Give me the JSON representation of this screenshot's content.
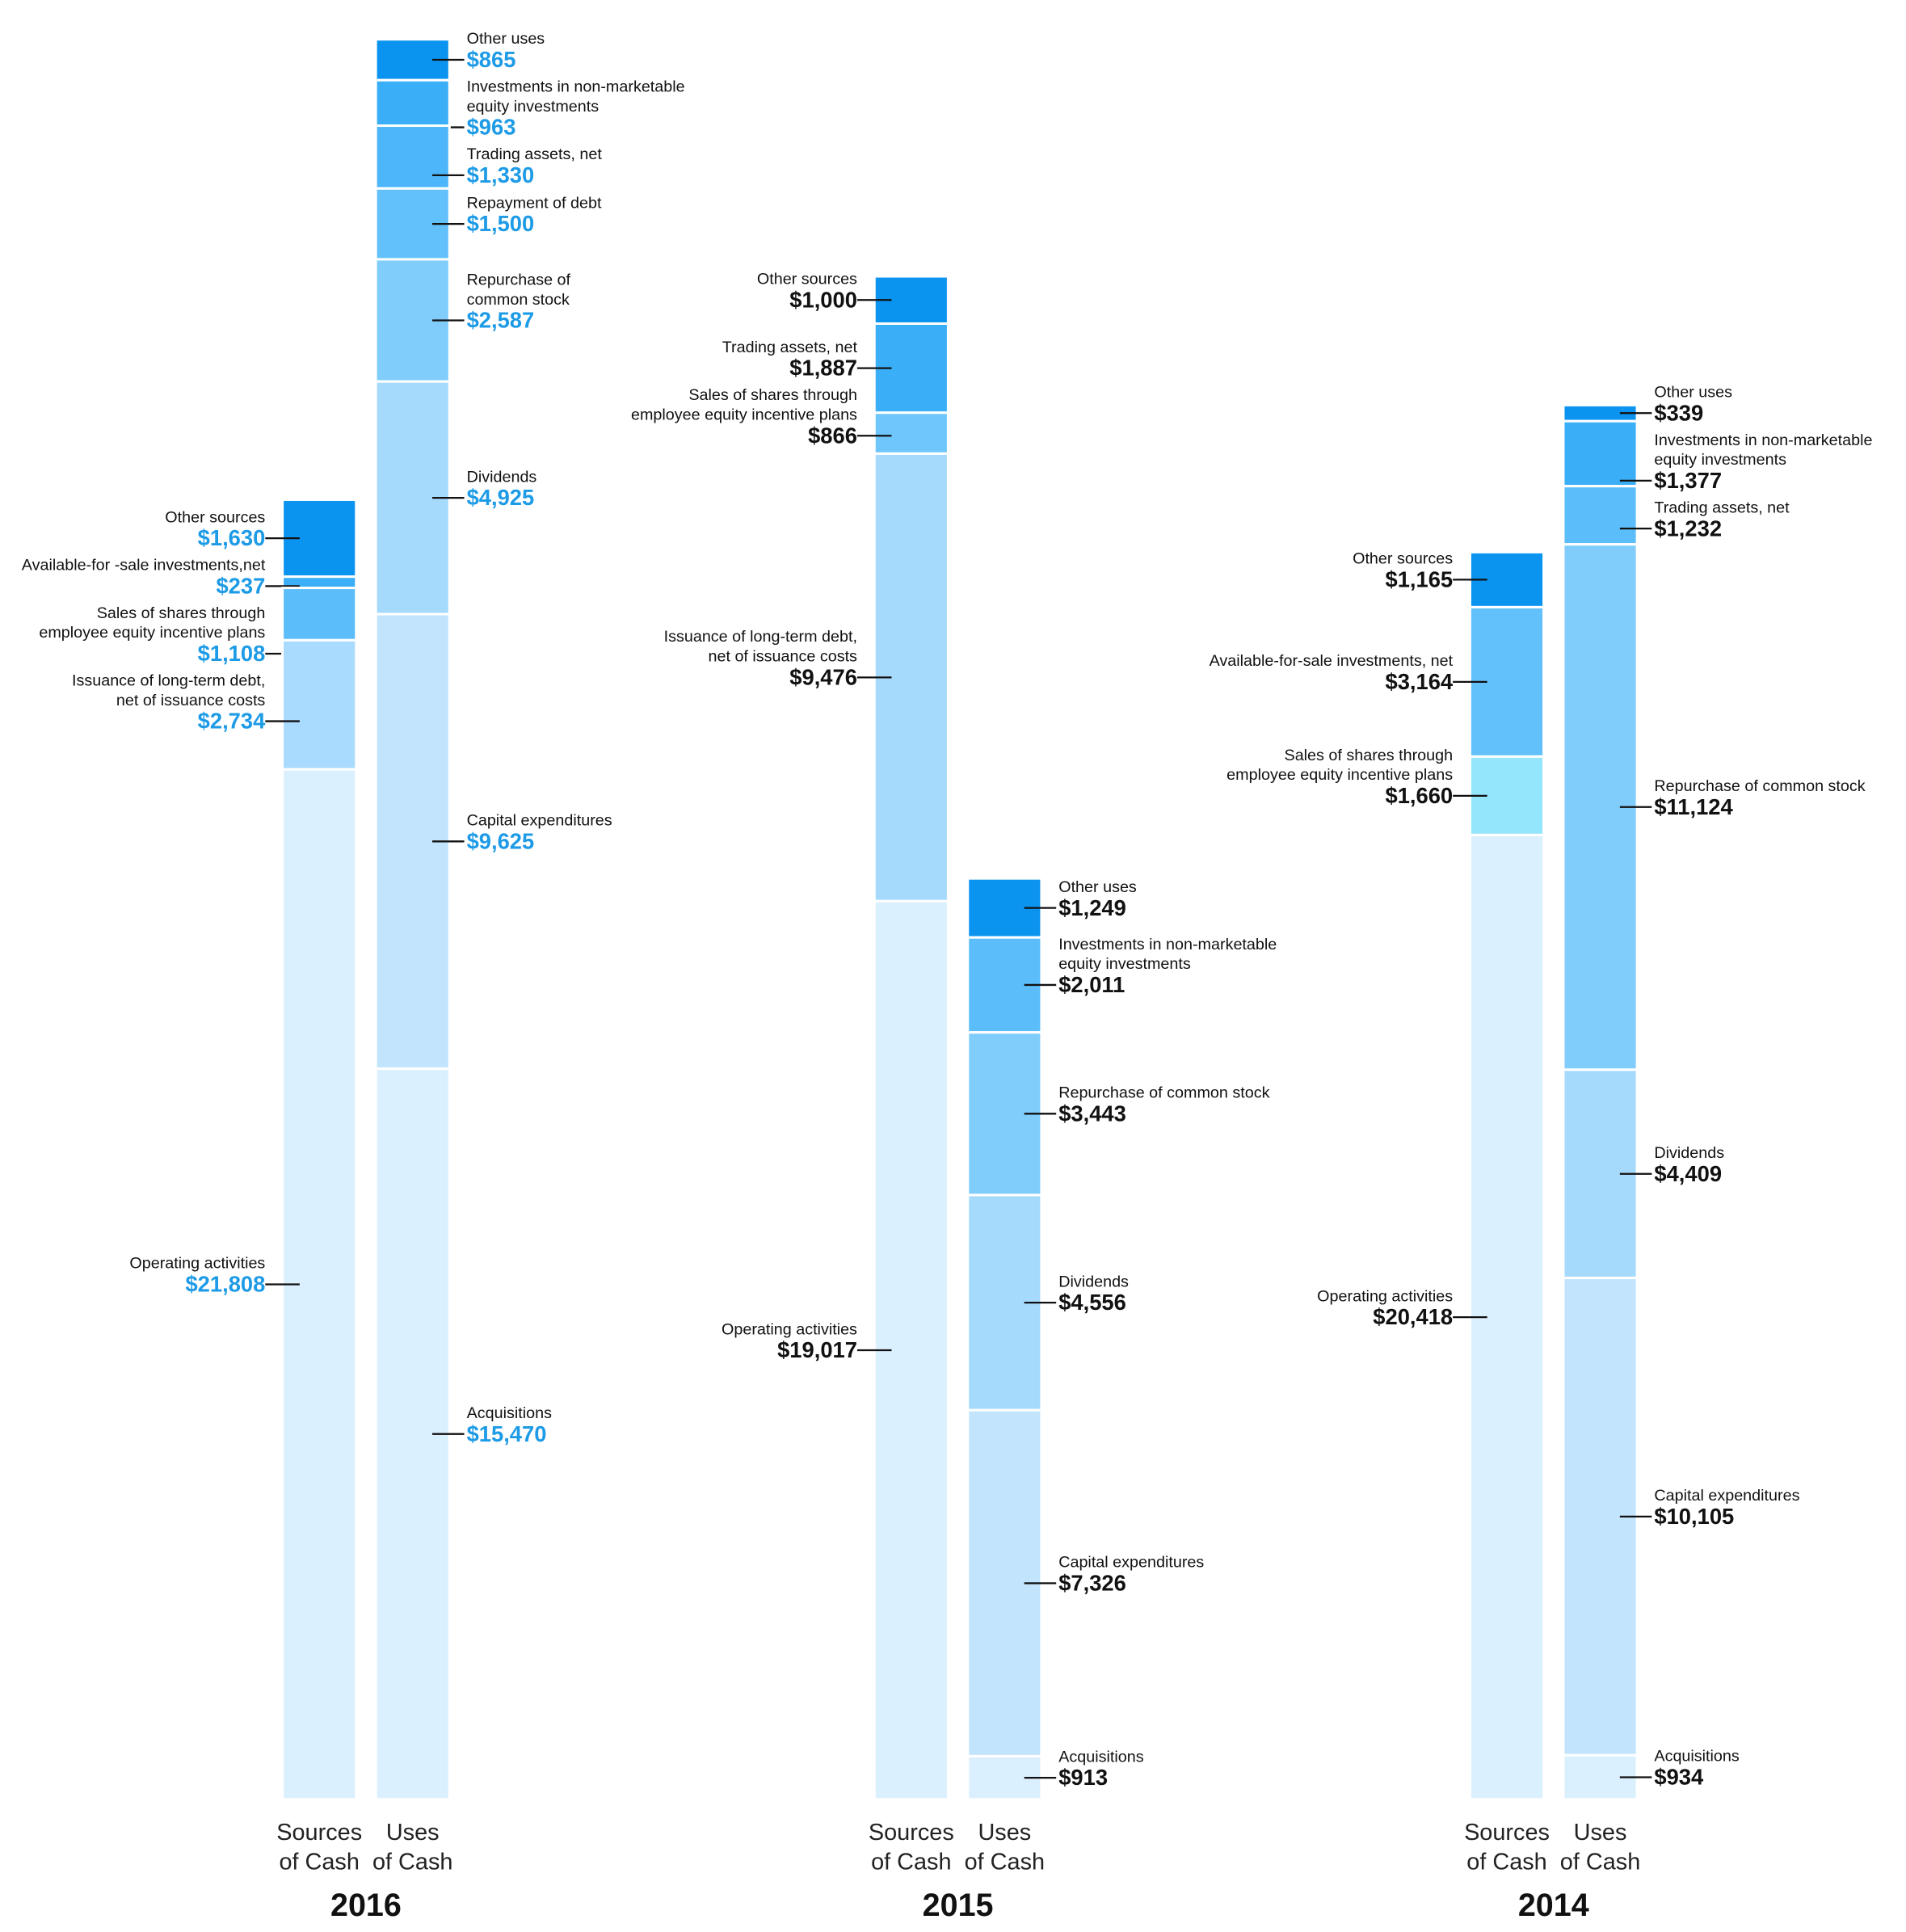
{
  "chart_data": [
    {
      "type": "stacked_columns",
      "title": "2016",
      "label_color": "#1e9be6",
      "categories": [
        "Sources of Cash",
        "Uses of Cash"
      ],
      "stacks": [
        {
          "labels": [
            "Other sources",
            "Available-for -sale investments,net",
            "Sales of shares through\nemployee equity incentive plans",
            "Issuance of long-term debt,\nnet of issuance costs",
            "Operating activities"
          ],
          "values": [
            1630,
            237,
            1108,
            2734,
            21808
          ],
          "value_labels": [
            "$1,630",
            "$237",
            "$1,108",
            "$2,734",
            "$21,808"
          ],
          "colors": [
            "#0a94f0",
            "#3aaef7",
            "#5cbdfb",
            "#a8dbfe",
            "#dbf0fe"
          ]
        },
        {
          "labels": [
            "Other uses",
            "Investments in non-marketable\nequity investments",
            "Trading assets, net",
            "Repayment of debt",
            "Repurchase of\ncommon stock",
            "Dividends",
            "Capital expenditures",
            "Acquisitions"
          ],
          "values": [
            865,
            963,
            1330,
            1500,
            2587,
            4925,
            9625,
            15470
          ],
          "value_labels": [
            "$865",
            "$963",
            "$1,330",
            "$1,500",
            "$2,587",
            "$4,925",
            "$9,625",
            "$15,470"
          ],
          "colors": [
            "#0a94f0",
            "#3aaff8",
            "#4db6fa",
            "#62c0fb",
            "#80cdfc",
            "#a6dafd",
            "#c2e5fd",
            "#dbf0fe"
          ]
        }
      ]
    },
    {
      "type": "stacked_columns",
      "title": "2015",
      "label_color": "#111111",
      "categories": [
        "Sources of Cash",
        "Uses of Cash"
      ],
      "stacks": [
        {
          "labels": [
            "Other sources",
            "Trading assets, net",
            "Sales of shares through\nemployee equity incentive plans",
            "Issuance of long-term debt,\nnet of issuance costs",
            "Operating activities"
          ],
          "values": [
            1000,
            1887,
            866,
            9476,
            19017
          ],
          "value_labels": [
            "$1,000",
            "$1,887",
            "$866",
            "$9,476",
            "$19,017"
          ],
          "colors": [
            "#0a94f0",
            "#3aaff8",
            "#6ec6fc",
            "#a6dafd",
            "#dbf0fe"
          ]
        },
        {
          "labels": [
            "Other uses",
            "Investments in non-marketable\nequity investments",
            "Repurchase of common stock",
            "Dividends",
            "Capital expenditures",
            "Acquisitions"
          ],
          "values": [
            1249,
            2011,
            3443,
            4556,
            7326,
            913
          ],
          "value_labels": [
            "$1,249",
            "$2,011",
            "$3,443",
            "$4,556",
            "$7,326",
            "$913"
          ],
          "colors": [
            "#0a94f0",
            "#5cbdfb",
            "#80cdfc",
            "#a6dafd",
            "#c2e5fd",
            "#dbf0fe"
          ]
        }
      ]
    },
    {
      "type": "stacked_columns",
      "title": "2014",
      "label_color": "#111111",
      "categories": [
        "Sources of Cash",
        "Uses of Cash"
      ],
      "stacks": [
        {
          "labels": [
            "Other sources",
            "Available-for-sale investments, net",
            "Sales of shares through\nemployee equity incentive plans",
            "Operating activities"
          ],
          "values": [
            1165,
            3164,
            1660,
            20418
          ],
          "value_labels": [
            "$1,165",
            "$3,164",
            "$1,660",
            "$20,418"
          ],
          "colors": [
            "#0a94f0",
            "#62c0fb",
            "#94e6fd",
            "#dbf0fe"
          ]
        },
        {
          "labels": [
            "Other uses",
            "Investments in non-marketable\nequity investments",
            "Trading assets, net",
            "Repurchase of common stock",
            "Dividends",
            "Capital expenditures",
            "Acquisitions"
          ],
          "values": [
            339,
            1377,
            1232,
            11124,
            4409,
            10105,
            934
          ],
          "value_labels": [
            "$339",
            "$1,377",
            "$1,232",
            "$11,124",
            "$4,409",
            "$10,105",
            "$934"
          ],
          "colors": [
            "#0a94f0",
            "#3aaff8",
            "#5cbdfb",
            "#80cdfc",
            "#a6dafd",
            "#c2e5fd",
            "#dbf0fe"
          ]
        }
      ]
    }
  ]
}
